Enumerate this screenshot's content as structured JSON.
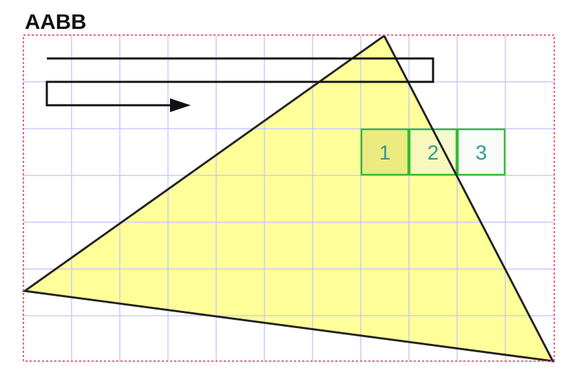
{
  "title": "AABB",
  "grid": {
    "columns": 11,
    "rows": 7
  },
  "tiles": [
    {
      "label": "1",
      "column": 7,
      "row": 2
    },
    {
      "label": "2",
      "column": 8,
      "row": 2
    },
    {
      "label": "3",
      "column": 9,
      "row": 2
    }
  ],
  "colors": {
    "triangle_fill": "#ffff99",
    "triangle_stroke": "#222222",
    "grid_line": "#c8c8ff",
    "bbox_border": "#ff5577",
    "tile_border": "#33bb33",
    "tile_text": "#339999",
    "tile_fill_inside": "#e6e67a",
    "tile_fill_partial": "#f6f6c6",
    "tile_fill_outside": "#f7fbf7",
    "scan_path_stroke": "#111111",
    "title_text": "#111111"
  }
}
